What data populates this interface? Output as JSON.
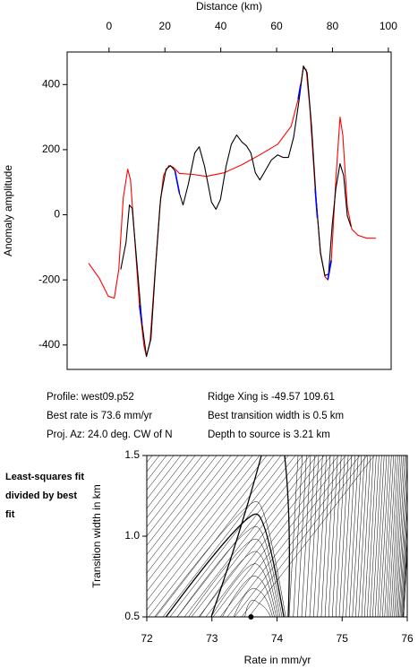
{
  "chart_data": [
    {
      "type": "line",
      "x_label": "Distance (km)",
      "y_label": "Anomaly amplitude",
      "xlim": [
        -15,
        101
      ],
      "xticks": [
        0,
        20,
        40,
        60,
        80,
        100
      ],
      "ylim": [
        -475,
        500
      ],
      "yticks": [
        -400,
        -200,
        0,
        200,
        400
      ],
      "series": [
        {
          "color": "#ff0000",
          "x": [
            -7.3,
            -3.5,
            -0.3,
            1.9,
            3.5,
            5.1,
            6.7,
            7.7,
            9.3,
            10.9,
            12.5,
            13.4,
            14.7,
            16.3,
            18.2,
            19.5,
            21.4,
            23,
            25.2,
            30,
            34.8,
            41.2,
            47.6,
            54,
            60.4,
            65.2,
            67.7,
            69.6,
            70.6,
            71.9,
            73.8,
            75.7,
            77.3,
            78.3,
            79.6,
            81.2,
            82.7,
            83.7,
            85.3,
            86.9,
            89.1,
            92.3,
            95.5
          ],
          "values": [
            -149,
            -195,
            -250,
            -256,
            -168,
            52,
            140,
            107,
            -85,
            -278,
            -402,
            -435,
            -388,
            -195,
            25,
            121,
            151,
            146,
            127,
            124,
            118,
            129,
            154,
            184,
            217,
            272,
            355,
            451,
            446,
            327,
            80,
            -113,
            -190,
            -200,
            -140,
            107,
            300,
            245,
            25,
            -44,
            -63,
            -72,
            -72
          ]
        },
        {
          "color": "#000000",
          "x": [
            4.2,
            6.1,
            7.3,
            8.3,
            9.9,
            11.8,
            13.4,
            15,
            16.6,
            18.5,
            20.4,
            22,
            23.6,
            25.2,
            26.5,
            28.4,
            30.7,
            32.3,
            34.2,
            36.7,
            38.3,
            39.9,
            41.9,
            43.8,
            45.7,
            47.6,
            49.2,
            50.8,
            52.4,
            54,
            55.9,
            58.1,
            60.4,
            62.3,
            64.2,
            66.1,
            68.1,
            69.6,
            70.9,
            72.5,
            74.1,
            75.7,
            77.3,
            78.6,
            79.9,
            81.2,
            82.7,
            84,
            85.3,
            86.6
          ],
          "values": [
            -168,
            -85,
            30,
            20,
            -140,
            -333,
            -435,
            -382,
            -168,
            52,
            140,
            151,
            135,
            66,
            30,
            94,
            190,
            209,
            149,
            39,
            17,
            47,
            149,
            217,
            245,
            223,
            212,
            190,
            129,
            107,
            135,
            168,
            184,
            176,
            176,
            239,
            355,
            457,
            437,
            272,
            52,
            -118,
            -187,
            -182,
            -30,
            80,
            157,
            121,
            -3,
            -36
          ]
        },
        {
          "color": "#0000ff",
          "x": [
            10.9,
            11.8,
            null,
            23.6,
            25.2,
            null,
            67.7,
            68.6,
            null,
            73.8,
            74.6,
            null,
            78.3,
            79.6
          ],
          "values": [
            -278,
            -333,
            null,
            135,
            66,
            null,
            355,
            400,
            null,
            80,
            -10,
            null,
            -200,
            -140
          ]
        }
      ],
      "annotations": [
        "Profile: west09.p52",
        "Ridge Xing is -49.57 109.61",
        "Best rate is 73.6 mm/yr",
        "Best transition width is 0.5 km",
        "Proj. Az: 24.0 deg. CW of N",
        "Depth to source is   3.21 km"
      ]
    },
    {
      "type": "contour",
      "title": "Least-squares fit divided by best fit",
      "x_label": "Rate in mm/yr",
      "y_label": "Transition width in km",
      "xlim": [
        72,
        76
      ],
      "xticks": [
        72,
        73,
        74,
        75,
        76
      ],
      "ylim": [
        0.5,
        1.5
      ],
      "yticks": [
        0.5,
        {
          "value": 1,
          "label": "1.0"
        },
        1.5
      ],
      "best_fit": {
        "x": 73.6,
        "y": 0.5
      }
    }
  ]
}
